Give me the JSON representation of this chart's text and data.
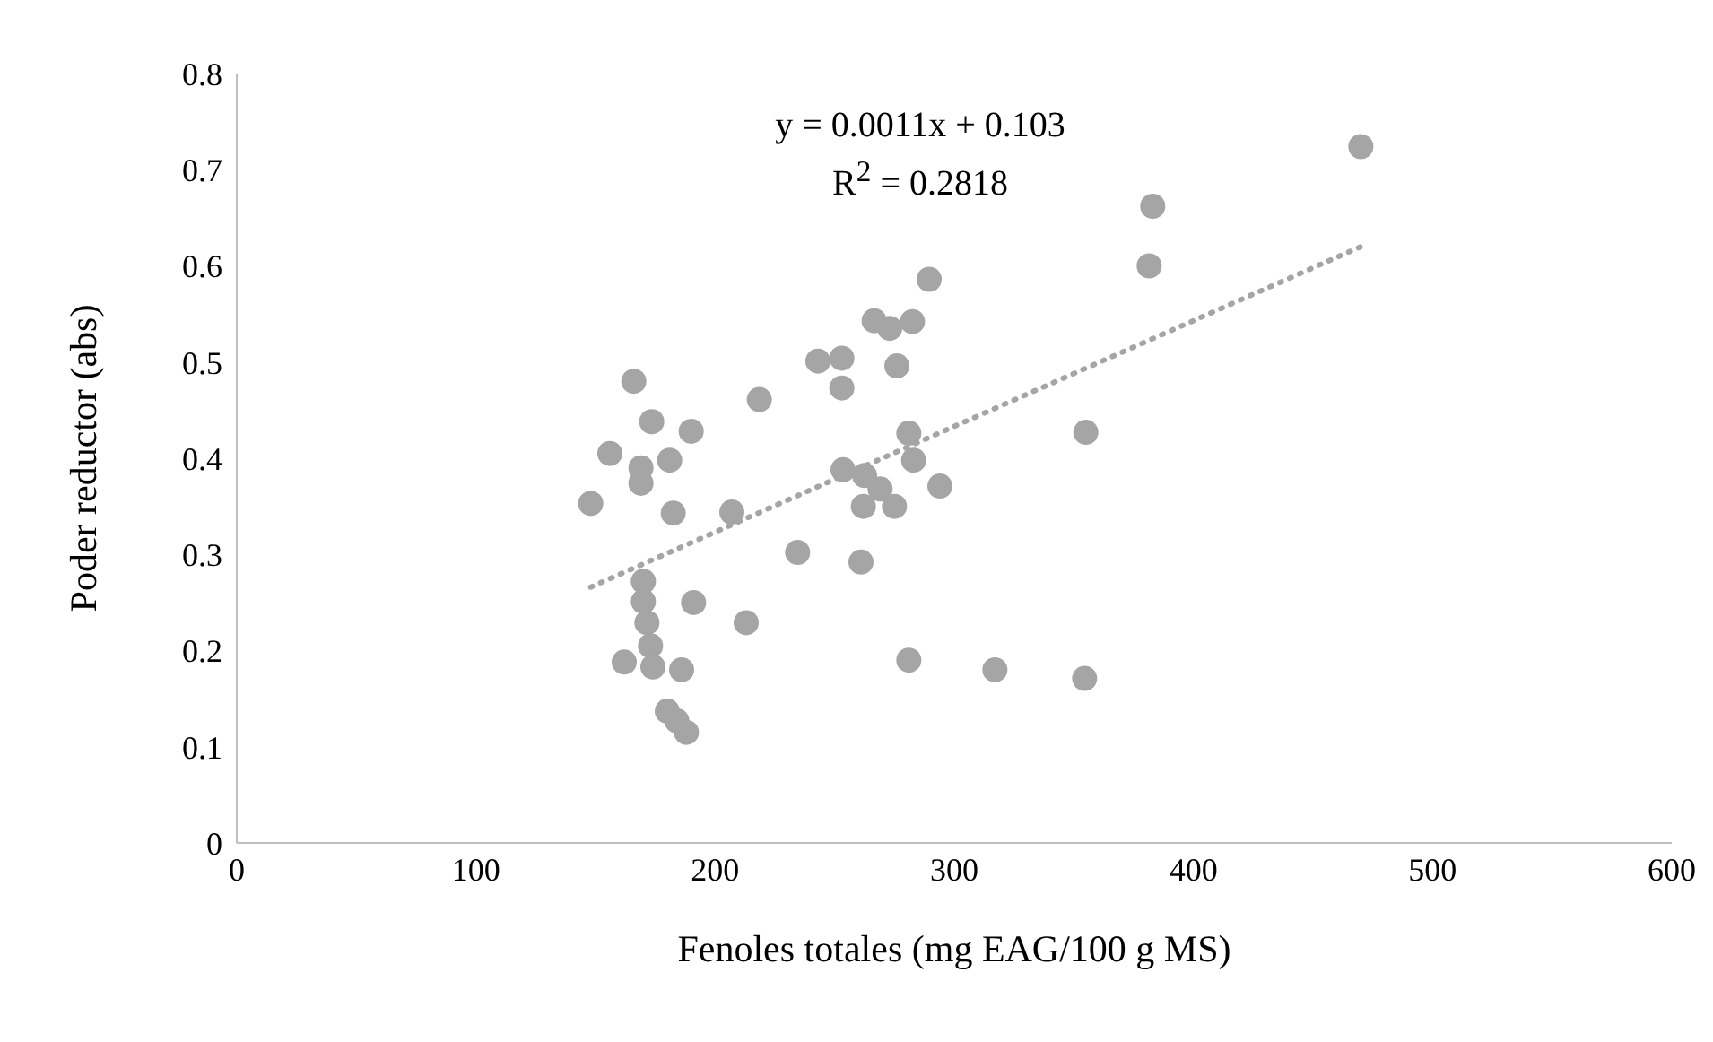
{
  "chart_data": {
    "type": "scatter",
    "xlabel": "Fenoles totales (mg EAG/100 g MS)",
    "ylabel": "Poder reductor (abs)",
    "annotations": [
      "y = 0.0011x + 0.103",
      "R$^{2}$ = 0.2818"
    ],
    "xlim": [
      0,
      600
    ],
    "xticks": [
      0,
      100,
      200,
      300,
      400,
      500,
      600
    ],
    "ylim": [
      0,
      0.8
    ],
    "yticks": [
      0,
      0.1,
      0.2,
      0.3,
      0.4,
      0.5,
      0.6,
      0.7,
      0.8
    ],
    "grid": false,
    "legend": false,
    "marker": "circle",
    "series": [
      {
        "color": "#a5a5a5",
        "x": [
          166,
          173.5,
          190,
          156,
          181,
          169,
          169,
          148,
          182.5,
          207,
          170,
          170,
          191,
          171.5,
          173,
          162,
          174,
          186,
          180,
          184,
          188,
          213,
          383,
          381.5,
          289.5,
          266.5,
          273,
          282.5,
          243,
          253,
          276,
          218.5,
          253,
          281,
          355,
          283,
          253.5,
          262.5,
          269,
          294,
          262,
          275,
          234.5,
          261,
          281,
          317,
          354.5,
          470
        ],
        "values": [
          0.48,
          0.438,
          0.428,
          0.405,
          0.398,
          0.39,
          0.374,
          0.353,
          0.343,
          0.344,
          0.272,
          0.251,
          0.25,
          0.229,
          0.205,
          0.188,
          0.183,
          0.18,
          0.137,
          0.127,
          0.115,
          0.229,
          0.662,
          0.6,
          0.586,
          0.543,
          0.535,
          0.542,
          0.501,
          0.504,
          0.496,
          0.461,
          0.473,
          0.426,
          0.427,
          0.398,
          0.388,
          0.382,
          0.368,
          0.371,
          0.35,
          0.35,
          0.302,
          0.292,
          0.19,
          0.18,
          0.171,
          0.724
        ]
      },
      {
        "type": "line",
        "color": "#a5a5a5",
        "marker": "none",
        "line_style": "dotted",
        "x": [
          148,
          470
        ],
        "values": [
          0.266,
          0.62
        ]
      }
    ]
  }
}
